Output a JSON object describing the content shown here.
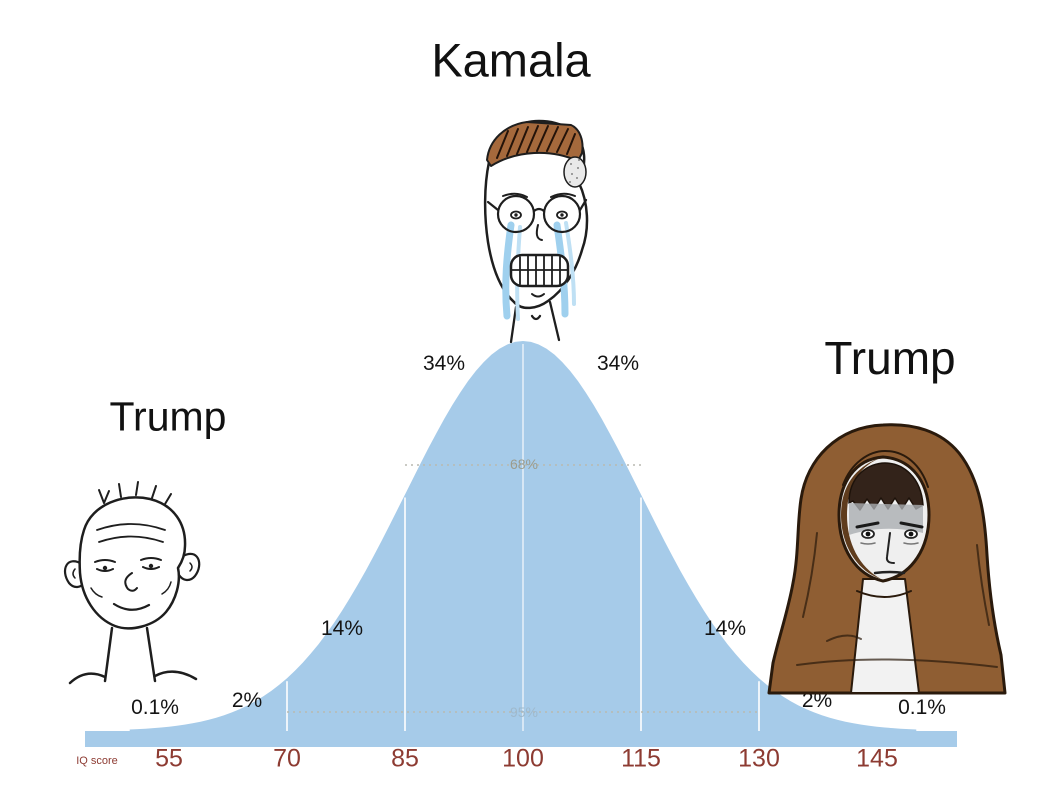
{
  "labels": {
    "center_top": "Kamala",
    "left": "Trump",
    "right": "Trump"
  },
  "characters": {
    "center": "crying-wojak-with-glasses",
    "left": "brainlet-wojak",
    "right": "hooded-wojak"
  },
  "chart_data": {
    "type": "area",
    "distribution": "normal",
    "mean": 100,
    "sd": 15,
    "xlabel": "IQ score",
    "x_ticks": [
      "55",
      "70",
      "85",
      "100",
      "115",
      "130",
      "145"
    ],
    "segment_percentages": [
      "0.1%",
      "2%",
      "14%",
      "34%",
      "34%",
      "14%",
      "2%",
      "0.1%"
    ],
    "interval_labels": [
      {
        "label": "68%",
        "range": [
          85,
          115
        ]
      },
      {
        "label": "95%",
        "range": [
          70,
          130
        ]
      }
    ],
    "colors": {
      "curve_fill": "#a6cbe9",
      "tick_text": "#8d3b32",
      "percent_text": "#141414",
      "interval_text_68": "#9b9b8c",
      "interval_text_95": "#9fb9cc"
    }
  }
}
